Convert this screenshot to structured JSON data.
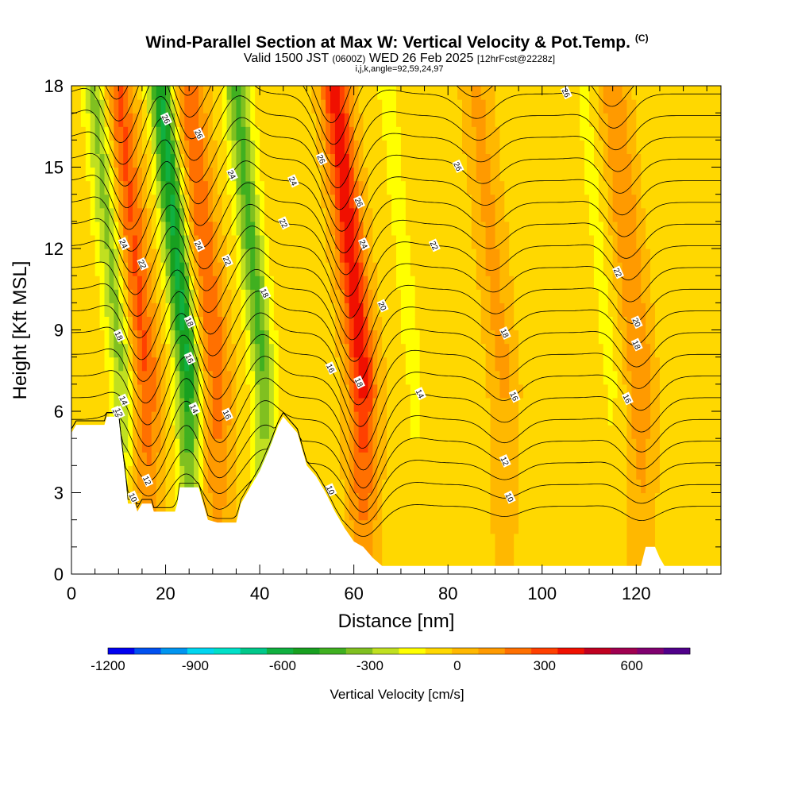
{
  "header": {
    "title": "Wind-Parallel Section at Max W: Vertical Velocity & Pot.Temp.",
    "copyright": "(C)",
    "valid_prefix": "Valid 1500 JST",
    "valid_utc": "(0600Z)",
    "valid_date": "WED 26 Feb 2025",
    "forecast": "[12hrFcst@2228z]",
    "ijk": "i,j,k,angle=92,59,24,97"
  },
  "chart_data": {
    "type": "heatmap",
    "xlabel": "Distance [nm]",
    "ylabel": "Height [Kft MSL]",
    "xlim": [
      0,
      138
    ],
    "ylim": [
      0,
      18
    ],
    "x_ticks": [
      0,
      20,
      40,
      60,
      80,
      100,
      120
    ],
    "y_ticks": [
      0,
      3,
      6,
      9,
      12,
      15,
      18
    ],
    "colorbar": {
      "label": "Vertical Velocity [cm/s]",
      "tick_labels": [
        "-1200",
        "-900",
        "-600",
        "-300",
        "0",
        "300",
        "600"
      ],
      "tick_values": [
        -1200,
        -900,
        -600,
        -300,
        0,
        300,
        600
      ],
      "range": [
        -1200,
        800
      ],
      "step": 100,
      "colors": [
        "#0000f0",
        "#0050f0",
        "#0095f0",
        "#00d6f0",
        "#00e0c8",
        "#00c88a",
        "#10b040",
        "#18a020",
        "#40b020",
        "#80c020",
        "#c0e020",
        "#ffff00",
        "#ffd800",
        "#ffb800",
        "#ff9a00",
        "#ff7000",
        "#ff4000",
        "#f01000",
        "#c00020",
        "#a00050",
        "#800070",
        "#50008a"
      ]
    },
    "updrafts_cms": [
      {
        "x": 16,
        "peak": 360
      },
      {
        "x": 31,
        "peak": 330
      },
      {
        "x": 62,
        "peak": 500
      },
      {
        "x": 92,
        "peak": 170
      },
      {
        "x": 121,
        "peak": 240
      }
    ],
    "downdrafts_cms": [
      {
        "x": 11,
        "peak": -300
      },
      {
        "x": 25,
        "peak": -580
      },
      {
        "x": 41,
        "peak": -380
      },
      {
        "x": 73,
        "peak": -80
      },
      {
        "x": 115,
        "peak": -80
      }
    ],
    "terrain_kft": [
      [
        0,
        5.2
      ],
      [
        1,
        5.5
      ],
      [
        7,
        5.5
      ],
      [
        7.5,
        5.8
      ],
      [
        10,
        5.8
      ],
      [
        10.5,
        5.0
      ],
      [
        11.5,
        3.5
      ],
      [
        12,
        2.6
      ],
      [
        13.5,
        2.6
      ],
      [
        14,
        2.3
      ],
      [
        15,
        2.6
      ],
      [
        17,
        2.6
      ],
      [
        17.5,
        2.3
      ],
      [
        22,
        2.3
      ],
      [
        22.5,
        2.6
      ],
      [
        23,
        3.2
      ],
      [
        27,
        3.2
      ],
      [
        28,
        2.6
      ],
      [
        29,
        2.0
      ],
      [
        31,
        1.9
      ],
      [
        35,
        1.9
      ],
      [
        36,
        2.6
      ],
      [
        38,
        3.2
      ],
      [
        40,
        3.8
      ],
      [
        42,
        4.6
      ],
      [
        44,
        5.5
      ],
      [
        45,
        5.8
      ],
      [
        46,
        5.6
      ],
      [
        48,
        5.2
      ],
      [
        50,
        4.0
      ],
      [
        52,
        3.6
      ],
      [
        54,
        3.0
      ],
      [
        56,
        2.3
      ],
      [
        58,
        1.7
      ],
      [
        60,
        1.2
      ],
      [
        62,
        1.0
      ],
      [
        64,
        0.6
      ],
      [
        66,
        0.3
      ],
      [
        69,
        0.3
      ],
      [
        70,
        0.3
      ],
      [
        80,
        0.3
      ],
      [
        110,
        0.3
      ],
      [
        121,
        0.3
      ],
      [
        122,
        1.0
      ],
      [
        124,
        1.0
      ],
      [
        125,
        0.6
      ],
      [
        126,
        0.3
      ],
      [
        138,
        0.3
      ]
    ],
    "isentrope_labels": [
      "10",
      "12",
      "14",
      "16",
      "18",
      "20",
      "22",
      "24",
      "26"
    ]
  }
}
